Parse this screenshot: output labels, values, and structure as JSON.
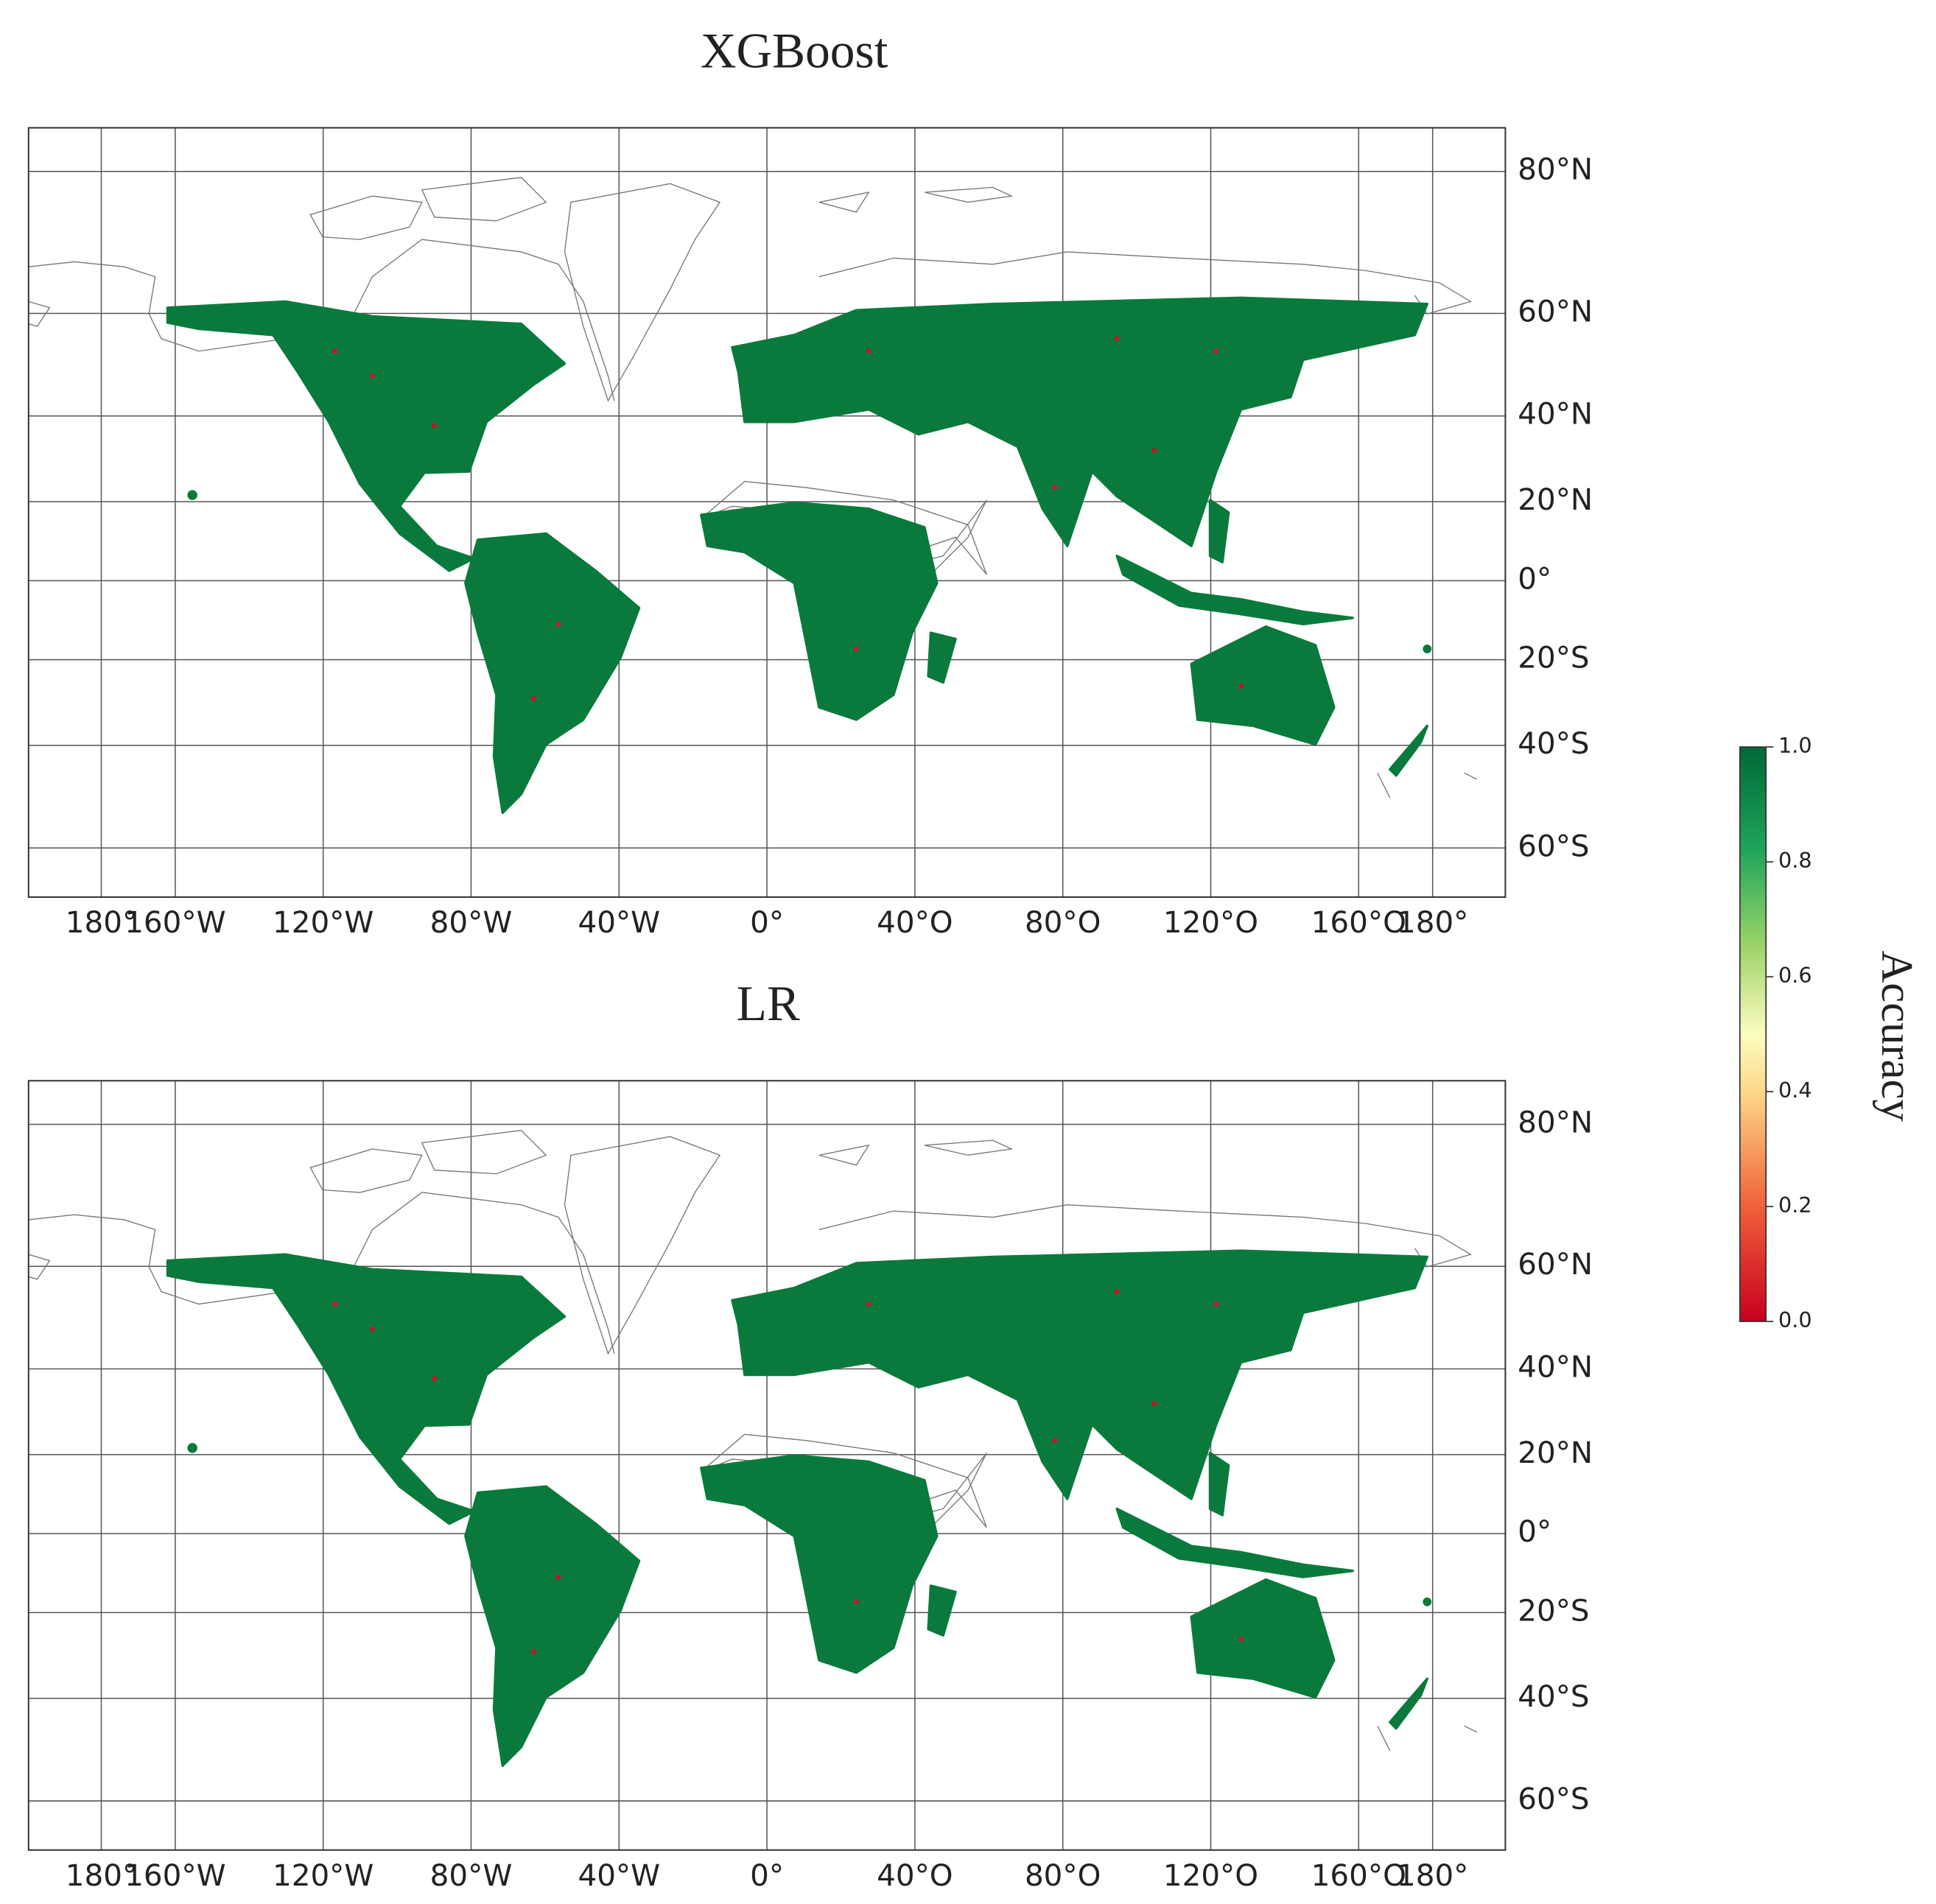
{
  "panels": [
    {
      "title": "XGBoost",
      "xticks": [
        {
          "value": -180,
          "label": "180°"
        },
        {
          "value": -160,
          "label": "160°W"
        },
        {
          "value": -120,
          "label": "120°W"
        },
        {
          "value": -80,
          "label": "80°W"
        },
        {
          "value": -40,
          "label": "40°W"
        },
        {
          "value": 0,
          "label": "0°"
        },
        {
          "value": 40,
          "label": "40°O"
        },
        {
          "value": 80,
          "label": "80°O"
        },
        {
          "value": 120,
          "label": "120°O"
        },
        {
          "value": 160,
          "label": "160°O"
        },
        {
          "value": 180,
          "label": "180°"
        }
      ],
      "yticks": [
        {
          "value": 80,
          "label": "80°N"
        },
        {
          "value": 60,
          "label": "60°N"
        },
        {
          "value": 40,
          "label": "40°N"
        },
        {
          "value": 20,
          "label": "20°N"
        },
        {
          "value": 0,
          "label": "0°"
        },
        {
          "value": -20,
          "label": "20°S"
        },
        {
          "value": -40,
          "label": "40°S"
        },
        {
          "value": -60,
          "label": "60°S"
        }
      ]
    },
    {
      "title": "LR",
      "xticks": [
        {
          "value": -180,
          "label": "180°"
        },
        {
          "value": -160,
          "label": "160°W"
        },
        {
          "value": -120,
          "label": "120°W"
        },
        {
          "value": -80,
          "label": "80°W"
        },
        {
          "value": -40,
          "label": "40°W"
        },
        {
          "value": 0,
          "label": "0°"
        },
        {
          "value": 40,
          "label": "40°O"
        },
        {
          "value": 80,
          "label": "80°O"
        },
        {
          "value": 120,
          "label": "120°O"
        },
        {
          "value": 160,
          "label": "160°O"
        },
        {
          "value": 180,
          "label": "180°"
        }
      ],
      "yticks": [
        {
          "value": 80,
          "label": "80°N"
        },
        {
          "value": 60,
          "label": "60°N"
        },
        {
          "value": 40,
          "label": "40°N"
        },
        {
          "value": 20,
          "label": "20°N"
        },
        {
          "value": 0,
          "label": "0°"
        },
        {
          "value": -20,
          "label": "20°S"
        },
        {
          "value": -40,
          "label": "40°S"
        },
        {
          "value": -60,
          "label": "60°S"
        }
      ]
    }
  ],
  "colorbar": {
    "label": "Accuracy",
    "ticks": [
      {
        "value": 0,
        "label": "0.0"
      },
      {
        "value": 0.2,
        "label": "0.2"
      },
      {
        "value": 0.4,
        "label": "0.4"
      },
      {
        "value": 0.6,
        "label": "0.6"
      },
      {
        "value": 0.8,
        "label": "0.8"
      },
      {
        "value": 1,
        "label": "1.0"
      }
    ]
  }
}
